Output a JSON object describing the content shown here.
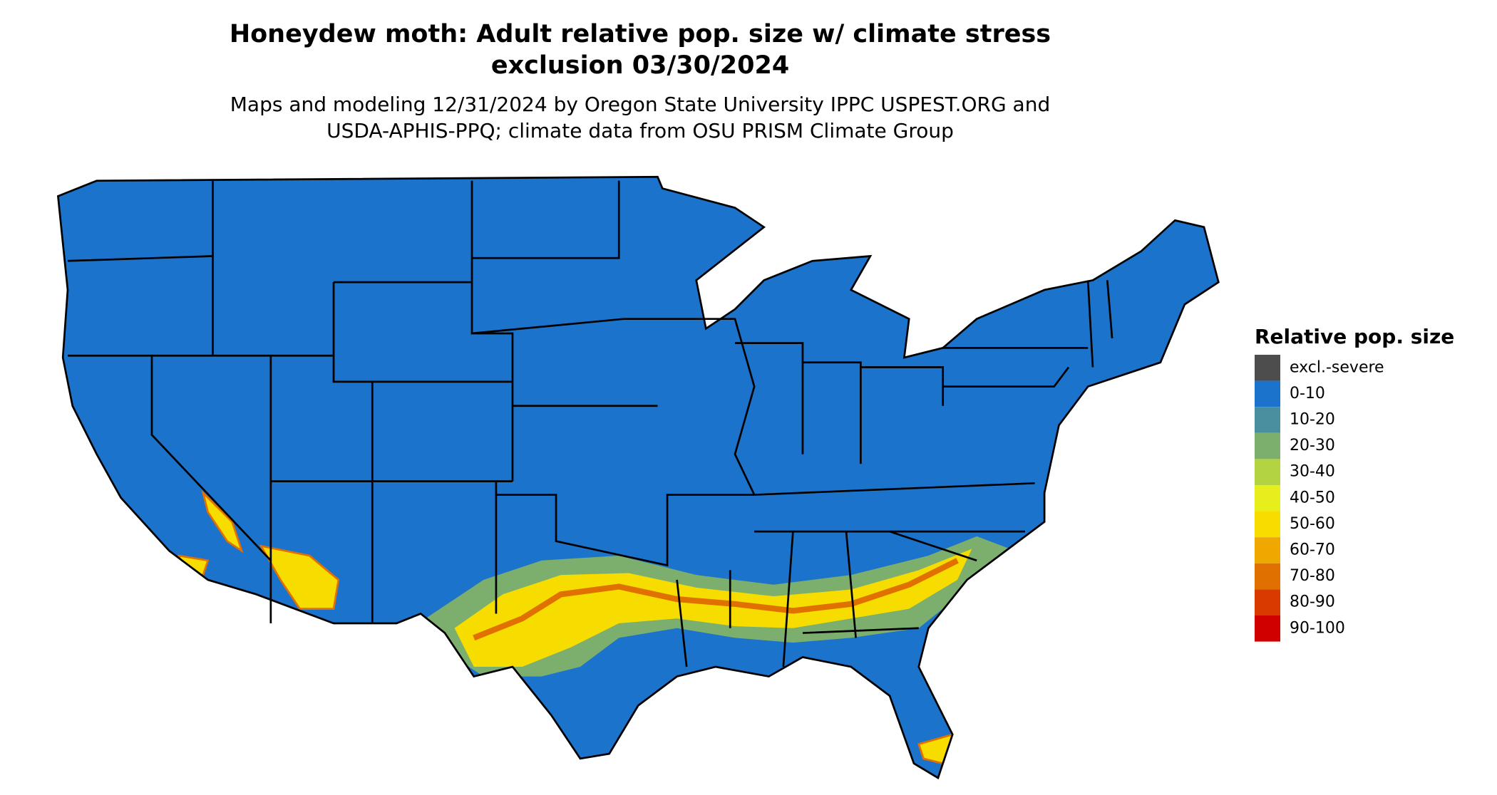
{
  "header": {
    "title_lines": [
      "Honeydew moth: Adult relative pop. size w/ climate stress",
      "exclusion 03/30/2024"
    ],
    "subtitle_lines": [
      "Maps and modeling 12/31/2024 by Oregon State University IPPC USPEST.ORG and",
      "USDA-APHIS-PPQ; climate data from OSU PRISM Climate Group"
    ]
  },
  "legend": {
    "title": "Relative pop. size",
    "items": [
      {
        "label": "excl.-severe",
        "color": "#4d4d4d"
      },
      {
        "label": "0-10",
        "color": "#1b73cc"
      },
      {
        "label": "10-20",
        "color": "#4a8fa0"
      },
      {
        "label": "20-30",
        "color": "#7caf6e"
      },
      {
        "label": "30-40",
        "color": "#b3d340"
      },
      {
        "label": "40-50",
        "color": "#e6ee1c"
      },
      {
        "label": "50-60",
        "color": "#f7dc00"
      },
      {
        "label": "60-70",
        "color": "#eea800"
      },
      {
        "label": "70-80",
        "color": "#e07000"
      },
      {
        "label": "80-90",
        "color": "#d83a00"
      },
      {
        "label": "90-100",
        "color": "#d00000"
      }
    ]
  }
}
